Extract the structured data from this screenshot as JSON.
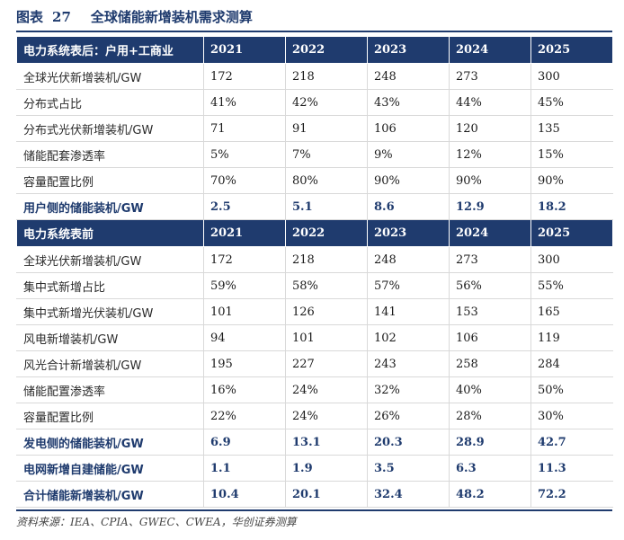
{
  "figure": {
    "label": "图表",
    "number": "27",
    "title": "全球储能新增装机需求测算"
  },
  "section1": {
    "header": "电力系统表后：户用+工商业",
    "years": [
      "2021",
      "2022",
      "2023",
      "2024",
      "2025"
    ],
    "rows": [
      {
        "label": "全球光伏新增装机/GW",
        "values": [
          "172",
          "218",
          "248",
          "273",
          "300"
        ],
        "bold": false
      },
      {
        "label": "分布式占比",
        "values": [
          "41%",
          "42%",
          "43%",
          "44%",
          "45%"
        ],
        "bold": false
      },
      {
        "label": "分布式光伏新增装机/GW",
        "values": [
          "71",
          "91",
          "106",
          "120",
          "135"
        ],
        "bold": false
      },
      {
        "label": "储能配套渗透率",
        "values": [
          "5%",
          "7%",
          "9%",
          "12%",
          "15%"
        ],
        "bold": false
      },
      {
        "label": "容量配置比例",
        "values": [
          "70%",
          "80%",
          "90%",
          "90%",
          "90%"
        ],
        "bold": false
      },
      {
        "label": "用户侧的储能装机/GW",
        "values": [
          "2.5",
          "5.1",
          "8.6",
          "12.9",
          "18.2"
        ],
        "bold": true
      }
    ]
  },
  "section2": {
    "header": "电力系统表前",
    "years": [
      "2021",
      "2022",
      "2023",
      "2024",
      "2025"
    ],
    "rows": [
      {
        "label": "全球光伏新增装机/GW",
        "values": [
          "172",
          "218",
          "248",
          "273",
          "300"
        ],
        "bold": false
      },
      {
        "label": "集中式新增占比",
        "values": [
          "59%",
          "58%",
          "57%",
          "56%",
          "55%"
        ],
        "bold": false
      },
      {
        "label": "集中式新增光伏装机/GW",
        "values": [
          "101",
          "126",
          "141",
          "153",
          "165"
        ],
        "bold": false
      },
      {
        "label": "风电新增装机/GW",
        "values": [
          "94",
          "101",
          "102",
          "106",
          "119"
        ],
        "bold": false
      },
      {
        "label": "风光合计新增装机/GW",
        "values": [
          "195",
          "227",
          "243",
          "258",
          "284"
        ],
        "bold": false
      },
      {
        "label": "储能配置渗透率",
        "values": [
          "16%",
          "24%",
          "32%",
          "40%",
          "50%"
        ],
        "bold": false
      },
      {
        "label": "容量配置比例",
        "values": [
          "22%",
          "24%",
          "26%",
          "28%",
          "30%"
        ],
        "bold": false
      },
      {
        "label": "发电侧的储能装机/GW",
        "values": [
          "6.9",
          "13.1",
          "20.3",
          "28.9",
          "42.7"
        ],
        "bold": true
      },
      {
        "label": "电网新增自建储能/GW",
        "values": [
          "1.1",
          "1.9",
          "3.5",
          "6.3",
          "11.3"
        ],
        "bold": true
      },
      {
        "label": "合计储能新增装机/GW",
        "values": [
          "10.4",
          "20.1",
          "32.4",
          "48.2",
          "72.2"
        ],
        "bold": true
      }
    ]
  },
  "source": "资料来源：IEA、CPIA、GWEC、CWEA，华创证券测算"
}
